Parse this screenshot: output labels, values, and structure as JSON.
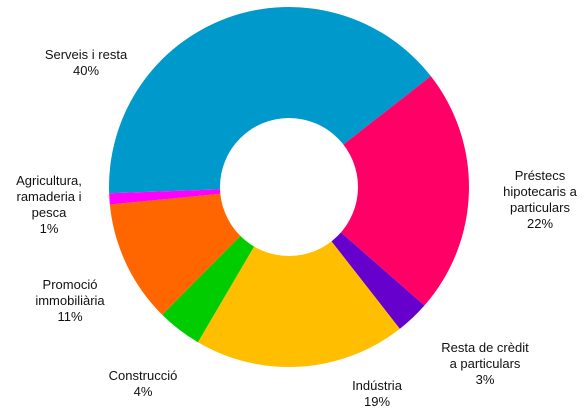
{
  "chart_data": {
    "type": "pie",
    "donut": true,
    "title": "",
    "unit": "%",
    "slices": [
      {
        "key": "serveis",
        "label_lines": [
          "Serveis i resta"
        ],
        "value": 40,
        "value_label": "40%",
        "color": "#0099CC"
      },
      {
        "key": "prestecs",
        "label_lines": [
          "Préstecs",
          "hipotecaris a",
          "particulars"
        ],
        "value": 22,
        "value_label": "22%",
        "color": "#FF0066"
      },
      {
        "key": "resta-credit",
        "label_lines": [
          "Resta de crèdit",
          "a particulars"
        ],
        "value": 3,
        "value_label": "3%",
        "color": "#6600CC"
      },
      {
        "key": "industria",
        "label_lines": [
          "Indústria"
        ],
        "value": 19,
        "value_label": "19%",
        "color": "#FFBF00"
      },
      {
        "key": "construccio",
        "label_lines": [
          "Construcció"
        ],
        "value": 4,
        "value_label": "4%",
        "color": "#00CC00"
      },
      {
        "key": "promocio",
        "label_lines": [
          "Promoció",
          "immobiliària"
        ],
        "value": 11,
        "value_label": "11%",
        "color": "#FF6600"
      },
      {
        "key": "agricultura",
        "label_lines": [
          "Agricultura,",
          "ramaderia i",
          "pesca"
        ],
        "value": 1,
        "value_label": "1%",
        "color": "#FF00FF"
      }
    ],
    "legend": "none"
  }
}
